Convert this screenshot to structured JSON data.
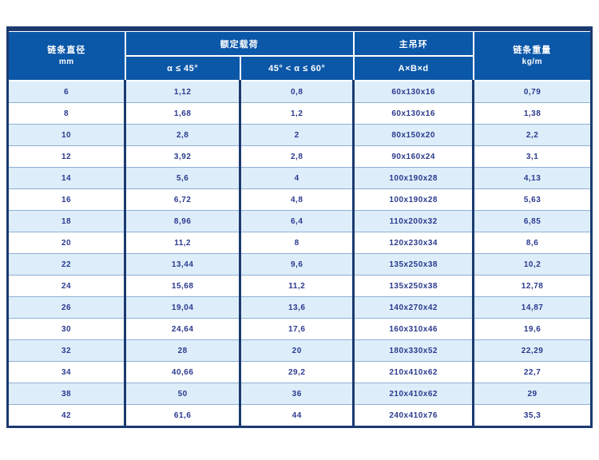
{
  "table": {
    "header": {
      "chain_diameter": {
        "line1": "链条直径",
        "line2": "mm"
      },
      "rated_load": "额定载荷",
      "alpha_le_45": "α ≤ 45°",
      "alpha_45_60": "45° < α ≤ 60°",
      "main_ring": "主吊环",
      "ring_dims": "A×B×d",
      "chain_weight": {
        "line1": "链条重量",
        "line2": "kg/m"
      }
    },
    "rows": [
      [
        "6",
        "1,12",
        "0,8",
        "60x130x16",
        "0,79"
      ],
      [
        "8",
        "1,68",
        "1,2",
        "60x130x16",
        "1,38"
      ],
      [
        "10",
        "2,8",
        "2",
        "80x150x20",
        "2,2"
      ],
      [
        "12",
        "3,92",
        "2,8",
        "90x160x24",
        "3,1"
      ],
      [
        "14",
        "5,6",
        "4",
        "100x190x28",
        "4,13"
      ],
      [
        "16",
        "6,72",
        "4,8",
        "100x190x28",
        "5,63"
      ],
      [
        "18",
        "8,96",
        "6,4",
        "110x200x32",
        "6,85"
      ],
      [
        "20",
        "11,2",
        "8",
        "120x230x34",
        "8,6"
      ],
      [
        "22",
        "13,44",
        "9,6",
        "135x250x38",
        "10,2"
      ],
      [
        "24",
        "15,68",
        "11,2",
        "135x250x38",
        "12,78"
      ],
      [
        "26",
        "19,04",
        "13,6",
        "140x270x42",
        "14,87"
      ],
      [
        "30",
        "24,64",
        "17,6",
        "160x310x46",
        "19,6"
      ],
      [
        "32",
        "28",
        "20",
        "180x330x52",
        "22,29"
      ],
      [
        "34",
        "40,66",
        "29,2",
        "210x410x62",
        "22,7"
      ],
      [
        "38",
        "50",
        "36",
        "210x410x62",
        "29"
      ],
      [
        "42",
        "61,6",
        "44",
        "240x410x76",
        "35,3"
      ]
    ],
    "colors": {
      "header_bg": "#0b57a8",
      "frame_border": "#1b3a70",
      "row_alt_bg": "#ddeefa",
      "row_bg": "#ffffff",
      "body_text": "#2b3a8e",
      "row_divider": "#8fafd4"
    }
  }
}
